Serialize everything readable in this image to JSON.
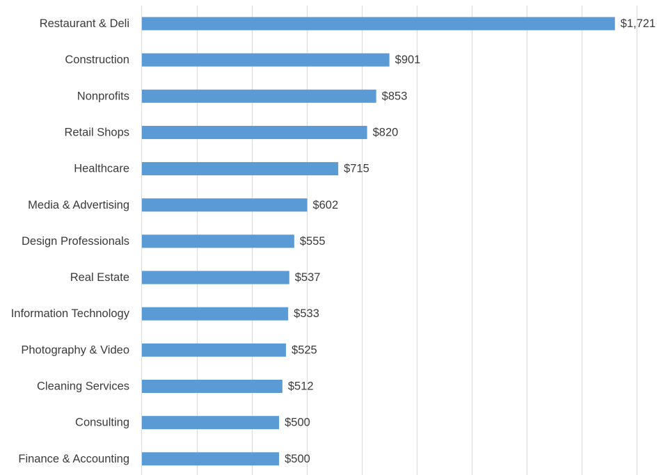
{
  "chart_data": {
    "type": "bar",
    "orientation": "horizontal",
    "title": "",
    "xlabel": "",
    "ylabel": "",
    "categories": [
      "Restaurant & Deli",
      "Construction",
      "Nonprofits",
      "Retail Shops",
      "Healthcare",
      "Media & Advertising",
      "Design Professionals",
      "Real Estate",
      "Information Technology",
      "Photography & Video",
      "Cleaning Services",
      "Consulting",
      "Finance & Accounting"
    ],
    "values": [
      1721,
      901,
      853,
      820,
      715,
      602,
      555,
      537,
      533,
      525,
      512,
      500,
      500
    ],
    "value_labels": [
      "$1,721",
      "$901",
      "$853",
      "$820",
      "$715",
      "$602",
      "$555",
      "$537",
      "$533",
      "$525",
      "$512",
      "$500",
      "$500"
    ],
    "xlim": [
      0,
      1800
    ],
    "x_gridline_step": 200,
    "grid": true,
    "bar_color": "#5b9bd5",
    "gridline_color": "#d9d9d9",
    "text_color": "#3b3b3b",
    "legend": "none"
  }
}
